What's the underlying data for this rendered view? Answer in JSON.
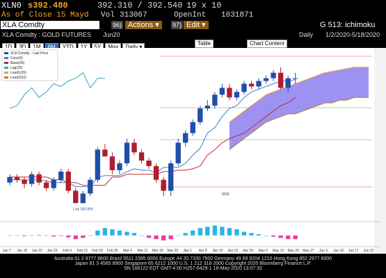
{
  "header": {
    "ticker": "XLN0",
    "price": "s392.480",
    "bidask": "392.310 / 392.540",
    "size": "19 x 10",
    "asof": "As of Close 15 Mayd",
    "vol_label": "Vol",
    "vol": "313067",
    "oi_label": "OpenInt",
    "oi": "1031871"
  },
  "toolbar": {
    "security": "XLA Comdty",
    "actions_num": "96)",
    "actions": "Actions ▾",
    "edit_num": "97)",
    "edit": "Edit ▾",
    "function": "G 513: ichimoku"
  },
  "subheader": {
    "name": "XLA Comdty : GOLD FUTURES",
    "contract": "Jun20",
    "period": "Daily",
    "range": "1/2/2020-5/18/2020"
  },
  "buttons": {
    "ranges": [
      "1D",
      "3D",
      "1M",
      "6M",
      "YTD",
      "1Y",
      "5Y",
      "Max"
    ],
    "active": "6M",
    "frequency": "Daily ▾",
    "table": "Table",
    "content": "Chart Content"
  },
  "chart_data": {
    "type": "candlestick",
    "legend": [
      "XLA Comdty - Last Price",
      "Conv(9)",
      "Base(26)",
      "Lag(26)",
      "Lead1(26)",
      "Lead2(52)"
    ],
    "legend_colors": [
      "#1f4fa8",
      "#3a7bd5",
      "#c0282e",
      "#2fa3c9",
      "#f0a030",
      "#c07a30"
    ],
    "annotations": [
      "Low 300.995",
      "2020"
    ],
    "ylim": [
      290,
      410
    ],
    "open": [
      316,
      320,
      318,
      315,
      322,
      316,
      312,
      318,
      324,
      310,
      301,
      308,
      318,
      340,
      335,
      325,
      330,
      345,
      338,
      332,
      328,
      318,
      310,
      330,
      345,
      352,
      360,
      370,
      372,
      380,
      385,
      378,
      382,
      388,
      386,
      390,
      392,
      396,
      385,
      392
    ],
    "high": [
      322,
      322,
      320,
      324,
      324,
      318,
      320,
      326,
      326,
      312,
      310,
      320,
      342,
      344,
      338,
      332,
      348,
      348,
      340,
      334,
      330,
      320,
      332,
      348,
      354,
      362,
      372,
      376,
      382,
      388,
      388,
      384,
      390,
      390,
      392,
      394,
      398,
      400,
      394,
      396
    ],
    "low": [
      314,
      316,
      312,
      313,
      314,
      310,
      310,
      316,
      308,
      302,
      300.995,
      306,
      316,
      336,
      322,
      322,
      328,
      336,
      330,
      326,
      316,
      306,
      306,
      328,
      342,
      350,
      358,
      368,
      370,
      378,
      376,
      376,
      380,
      384,
      384,
      388,
      390,
      384,
      382,
      388
    ],
    "close": [
      320,
      318,
      315,
      322,
      316,
      312,
      318,
      324,
      310,
      301,
      308,
      318,
      340,
      335,
      325,
      330,
      345,
      338,
      332,
      328,
      318,
      310,
      330,
      345,
      352,
      360,
      370,
      372,
      380,
      385,
      378,
      382,
      388,
      386,
      390,
      392,
      396,
      385,
      392,
      392
    ],
    "up_color": "#1f4fa8",
    "down_color": "#b01c2e",
    "lines": [
      {
        "name": "Conv(9)",
        "color": "#3a7bd5",
        "values": [
          318,
          318,
          318,
          318,
          318,
          317,
          316,
          316,
          316,
          313,
          313,
          313,
          320,
          321,
          321,
          321,
          324,
          326,
          325,
          325,
          323,
          327,
          327,
          327,
          330,
          336,
          341,
          352,
          356,
          364,
          370,
          372,
          378,
          382,
          384,
          386,
          388,
          390,
          390,
          391,
          null,
          null,
          null,
          null,
          null,
          null,
          null,
          null,
          null,
          null
        ]
      },
      {
        "name": "Base(26)",
        "color": "#c0282e",
        "values": [
          320,
          320,
          320,
          320,
          320,
          320,
          318,
          318,
          316,
          316,
          314,
          314,
          314,
          314,
          320,
          320,
          322,
          322,
          322,
          322,
          322,
          324,
          324,
          325,
          325,
          326,
          328,
          336,
          340,
          345,
          348,
          350,
          352,
          356,
          360,
          364,
          368,
          372,
          374,
          378,
          null,
          null,
          null,
          null,
          null,
          null,
          null,
          null,
          null,
          null
        ]
      },
      {
        "name": "Lag(26)",
        "color": "#2fa3c9",
        "values": [
          370,
          372,
          380,
          385,
          378,
          382,
          388,
          386,
          390,
          392,
          396,
          385,
          392,
          392,
          null,
          null,
          null,
          null,
          null,
          null,
          null,
          null,
          null,
          null,
          null,
          null,
          null,
          null,
          null,
          null,
          null,
          null,
          null,
          null,
          null,
          null,
          null,
          null,
          null,
          null,
          null,
          null,
          null,
          null,
          null,
          null,
          null,
          null,
          null,
          null
        ]
      }
    ],
    "cloud": {
      "color": "#8c7ff0",
      "lead1": [
        null,
        null,
        null,
        null,
        null,
        null,
        null,
        null,
        null,
        null,
        null,
        null,
        null,
        null,
        null,
        null,
        null,
        null,
        null,
        null,
        null,
        null,
        null,
        null,
        null,
        null,
        null,
        null,
        null,
        null,
        360,
        364,
        368,
        372,
        376,
        380,
        382,
        384,
        386,
        388,
        390,
        392,
        394,
        396,
        397,
        398,
        399,
        400,
        400,
        400
      ],
      "lead2": [
        null,
        null,
        null,
        null,
        null,
        null,
        null,
        null,
        null,
        null,
        null,
        null,
        null,
        null,
        null,
        null,
        null,
        null,
        null,
        null,
        null,
        null,
        null,
        null,
        null,
        null,
        null,
        null,
        null,
        null,
        340,
        344,
        348,
        352,
        356,
        360,
        362,
        364,
        366,
        366,
        368,
        370,
        372,
        374,
        374,
        376,
        376,
        378,
        378,
        378
      ]
    },
    "macd": {
      "ylim": [
        -8,
        10
      ],
      "pos_color": "#2ab4e6",
      "neg_color": "#e8409a",
      "values": [
        0,
        0,
        -0.5,
        0.3,
        0.5,
        -0.3,
        -0.8,
        -0.4,
        -1.5,
        -3,
        -2,
        0,
        4,
        6,
        5,
        4,
        3,
        2,
        0,
        -2,
        -3,
        -4,
        -3,
        0,
        2,
        4,
        6,
        7,
        8,
        7,
        6,
        5,
        3,
        2,
        1,
        0,
        -1,
        -2,
        -3,
        -3
      ]
    },
    "x_labels": [
      "Jan 7",
      "Jan 15",
      "Jan 22",
      "Jan 29",
      "Feb 5",
      "Feb 12",
      "Feb 18",
      "Feb 26",
      "Mar 4",
      "Mar 11",
      "Mar 18",
      "Mar 25",
      "Apr 1",
      "Apr 8",
      "Apr 15",
      "Apr 22",
      "Apr 29",
      "May 6",
      "May 13",
      "May 20",
      "May 27",
      "Jun 3",
      "Jun 10",
      "Jun 17",
      "Jun 22"
    ]
  },
  "footer": [
    "Australia 61 2 9777 8600 Brazil 5511 2395 9000 Europe 44 20 7330 7500 Germany 49 69 9204 1210 Hong Kong 852 2977 6000",
    "Japan 81 3 4565 8900        Singapore 65 6212 1000       U.S. 1 212 318 2000        Copyright 2020 Bloomberg Finance L.P.",
    "SN 168122 EDT  GMT-4:00 H257-6429-1 16-May-2020 13:07:32"
  ]
}
